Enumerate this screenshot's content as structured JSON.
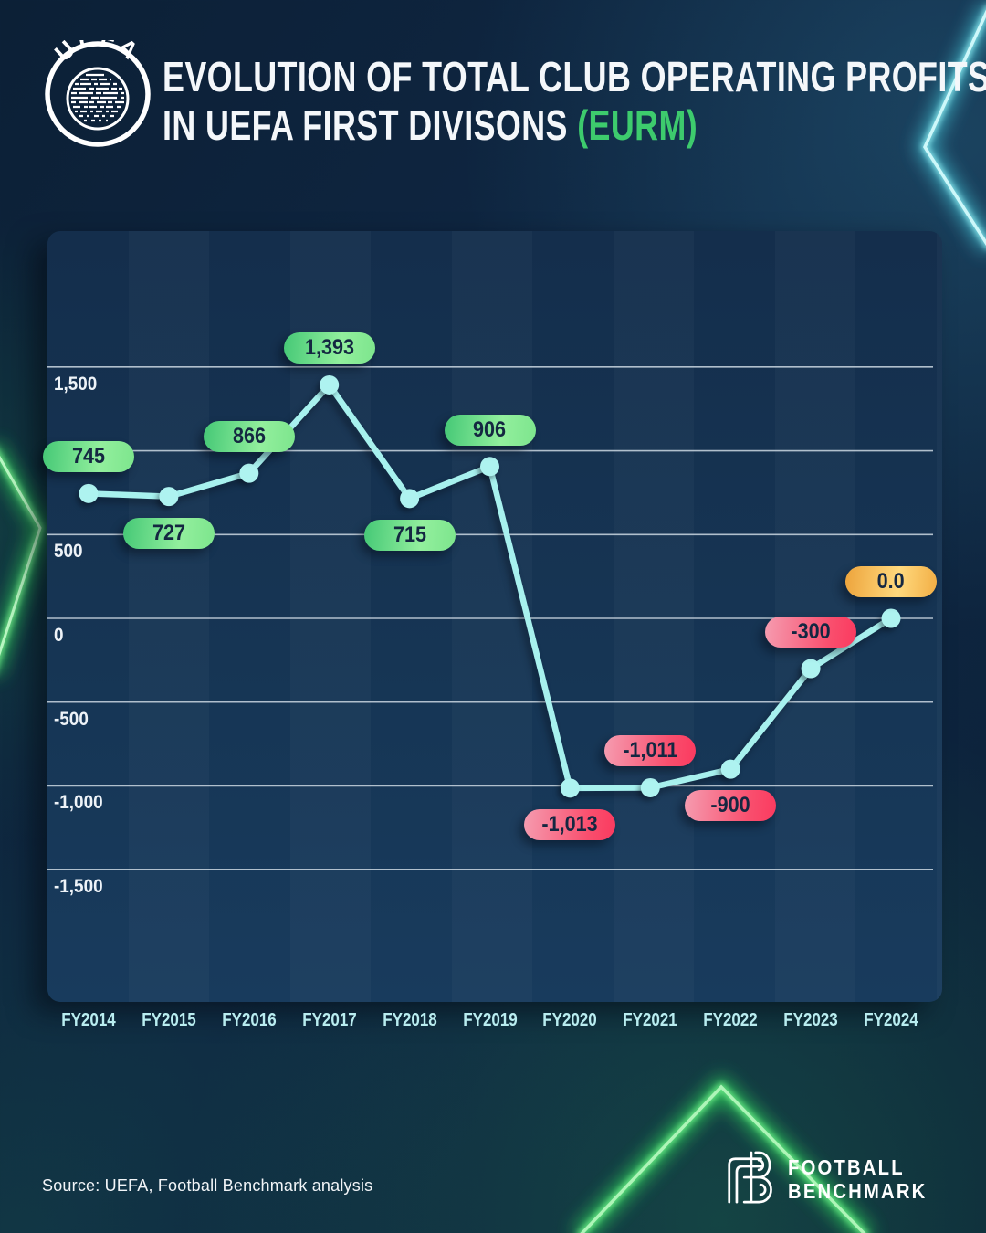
{
  "header": {
    "title_line1": "EVOLUTION OF TOTAL CLUB OPERATING PROFITS",
    "title_line2": "IN UEFA FIRST DIVISONS",
    "title_accent": "(EURM)",
    "uefa_logo_text": "UEFA"
  },
  "chart_data": {
    "type": "line",
    "title": "Evolution of total club operating profits in UEFA first divisons (EURm)",
    "categories": [
      "FY2014",
      "FY2015",
      "FY2016",
      "FY2017",
      "FY2018",
      "FY2019",
      "FY2020",
      "FY2021",
      "FY2022",
      "FY2023",
      "FY2024"
    ],
    "series": [
      {
        "name": "Total club operating profits (EURm)",
        "values": [
          745,
          727,
          866,
          1393,
          715,
          906,
          -1013,
          -1011,
          -900,
          -300,
          0
        ]
      }
    ],
    "point_labels": [
      "745",
      "727",
      "866",
      "1,393",
      "715",
      "906",
      "-1,013",
      "-1,011",
      "-900",
      "-300",
      "0.0"
    ],
    "label_position": [
      "above",
      "below",
      "above",
      "above",
      "below",
      "above",
      "below",
      "above",
      "below",
      "above",
      "above"
    ],
    "label_color": [
      "green",
      "green",
      "green",
      "green",
      "green",
      "green",
      "pink",
      "pink",
      "pink",
      "pink",
      "orange"
    ],
    "y_ticks": [
      {
        "value": 1500,
        "label": "1,500"
      },
      {
        "value": 1000,
        "label": ""
      },
      {
        "value": 500,
        "label": "500"
      },
      {
        "value": 0,
        "label": "0"
      },
      {
        "value": -500,
        "label": "-500"
      },
      {
        "value": -1000,
        "label": "-1,000"
      },
      {
        "value": -1500,
        "label": "-1,500"
      }
    ],
    "ylim": [
      -1900,
      2300
    ],
    "grid": true,
    "legend": false
  },
  "colors": {
    "line": "#a7f1ee",
    "point": "#aef3f0",
    "gridline": "#ccd8e2",
    "badge_green_from": "#45c876",
    "badge_green_to": "#8deb97",
    "badge_pink_from": "#f59cb0",
    "badge_pink_to": "#fa3a5f",
    "badge_orange_from": "#eda43c",
    "badge_orange_to": "#ffd97d",
    "title_accent": "#3dcb6d",
    "neon_green": "#3ade66",
    "neon_cyan": "#49cfe0"
  },
  "footer": {
    "source_text": "Source: UEFA, Football Benchmark analysis",
    "fb_logo_line1": "FOOTBALL",
    "fb_logo_line2": "BENCHMARK"
  }
}
